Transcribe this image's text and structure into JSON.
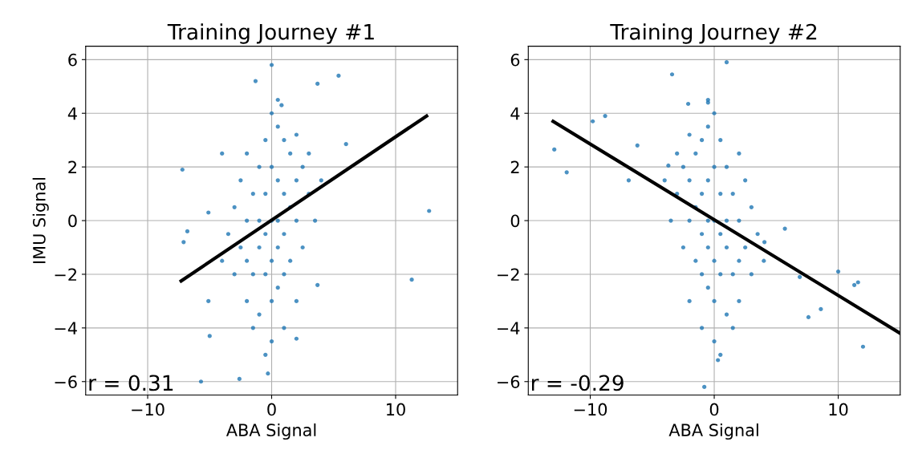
{
  "chart_data": [
    {
      "type": "scatter",
      "title": "Training Journey #1",
      "xlabel": "ABA Signal",
      "ylabel": "IMU Signal",
      "xlim": [
        -15,
        15
      ],
      "ylim": [
        -6.5,
        6.5
      ],
      "xticks": [
        {
          "value": -10,
          "label": "−10"
        },
        0,
        10
      ],
      "yticks": [
        {
          "value": -6,
          "label": "−6"
        },
        {
          "value": -4,
          "label": "−4"
        },
        {
          "value": -2,
          "label": "−2"
        },
        0,
        2,
        4,
        6
      ],
      "grid": true,
      "annotations": [
        "r = 0.31"
      ],
      "series": [
        {
          "marker": "circle",
          "color": "#1f77b4",
          "x": [
            -7.2,
            -6.8,
            -7.1,
            12.7,
            11.3,
            5.4,
            3.7,
            0,
            6.0,
            -5.7,
            -0.3,
            -2.6,
            -1.3,
            0.8,
            3.7,
            -5,
            -5.1,
            -5.1,
            -4,
            2,
            -3,
            -2.5,
            -2,
            -2,
            -1.5,
            -1.5,
            -1,
            -1,
            -1,
            -1,
            -0.5,
            -0.5,
            -0.5,
            -0.5,
            0,
            0,
            0,
            0,
            0,
            0,
            0.5,
            0.5,
            0.5,
            0.5,
            0.5,
            1,
            1,
            1,
            1,
            1.5,
            1.5,
            1.5,
            2,
            2,
            2,
            2.5,
            2.5,
            3,
            3,
            -3.5,
            -3,
            -2.5,
            -2,
            -1.5,
            1,
            -0.5,
            0.5,
            3.5,
            -4,
            4,
            2,
            -2
          ],
          "values": [
            1.9,
            -0.4,
            -0.8,
            0.36,
            -2.2,
            5.4,
            5.1,
            5.8,
            2.85,
            -6.0,
            -5.7,
            -5.9,
            5.2,
            4.3,
            -2.4,
            -4.3,
            -3,
            0.3,
            2.5,
            -4.4,
            -2,
            -1,
            0,
            -3,
            1,
            -2,
            2,
            0,
            -1,
            -3.5,
            3,
            1,
            -0.5,
            -2,
            4,
            2,
            0,
            -1.5,
            -3,
            -4.5,
            3.5,
            1.5,
            0,
            -1,
            -2.5,
            3,
            1,
            -0.5,
            -2,
            2.5,
            0.5,
            -1.5,
            3.2,
            1.5,
            0,
            2,
            -1,
            1,
            2.5,
            -0.5,
            0.5,
            1.5,
            -1.5,
            -4,
            -4,
            -5,
            4.5,
            0,
            -1.5,
            1.5,
            -3,
            2.5
          ]
        },
        {
          "type": "line",
          "color": "#000000",
          "x": [
            -7.3,
            12.5
          ],
          "values": [
            -2.25,
            3.9
          ]
        }
      ]
    },
    {
      "type": "scatter",
      "title": "Training Journey #2",
      "xlabel": "ABA Signal",
      "xlim": [
        -15,
        15
      ],
      "ylim": [
        -6.5,
        6.5
      ],
      "xticks": [
        {
          "value": -10,
          "label": "−10"
        },
        0,
        10
      ],
      "yticks": [
        {
          "value": -6,
          "label": "−6"
        },
        {
          "value": -4,
          "label": "−4"
        },
        {
          "value": -2,
          "label": "−2"
        },
        0,
        2,
        4,
        6
      ],
      "grid": true,
      "annotations": [
        "r = -0.29"
      ],
      "series": [
        {
          "marker": "circle",
          "color": "#1f77b4",
          "x": [
            -12.9,
            -11.9,
            -9.8,
            -8.8,
            -3.4,
            1.0,
            12.0,
            11.3,
            11.6,
            10,
            8.6,
            6.9,
            7.6,
            -0.8,
            0.3,
            -3.7,
            -6.2,
            -6.9,
            4.05,
            5.7,
            -2.1,
            -0.5,
            3,
            2.5,
            2,
            2,
            1.5,
            1.5,
            1,
            1,
            1,
            1,
            0.5,
            0.5,
            0.5,
            0.5,
            0,
            0,
            0,
            0,
            0,
            0,
            -0.5,
            -0.5,
            -0.5,
            -0.5,
            -0.5,
            -1,
            -1,
            -1,
            -1,
            -1.5,
            -1.5,
            -1.5,
            -2,
            -2,
            -2,
            -2.5,
            -2.5,
            -3,
            -3,
            3.5,
            3,
            2.5,
            2,
            1.5,
            -1,
            0.5,
            -0.5,
            -3.5,
            4,
            -4,
            -2,
            2
          ],
          "values": [
            2.65,
            1.8,
            3.7,
            3.9,
            5.45,
            5.9,
            -4.7,
            -2.4,
            -2.3,
            -1.9,
            -3.3,
            -2.1,
            -3.6,
            -6.2,
            -5.2,
            2.05,
            2.8,
            1.5,
            -0.8,
            -0.3,
            4.35,
            4.4,
            -2,
            -1,
            0,
            -3,
            1,
            -2,
            2,
            0,
            -1,
            -3.5,
            3,
            1,
            -0.5,
            -2,
            4,
            2,
            0,
            -1.5,
            -3,
            -4.5,
            3.5,
            1.5,
            0,
            -1,
            -2.5,
            3,
            1,
            -0.5,
            -2,
            2.5,
            0.5,
            -1.5,
            3.2,
            1.5,
            0,
            2,
            -1,
            1,
            2.5,
            -0.5,
            0.5,
            1.5,
            -1.5,
            -4,
            -4,
            -5,
            4.5,
            0,
            -1.5,
            1.5,
            -3,
            2.5
          ]
        },
        {
          "type": "line",
          "color": "#000000",
          "x": [
            -13,
            15
          ],
          "values": [
            3.7,
            -4.2
          ]
        }
      ]
    }
  ]
}
